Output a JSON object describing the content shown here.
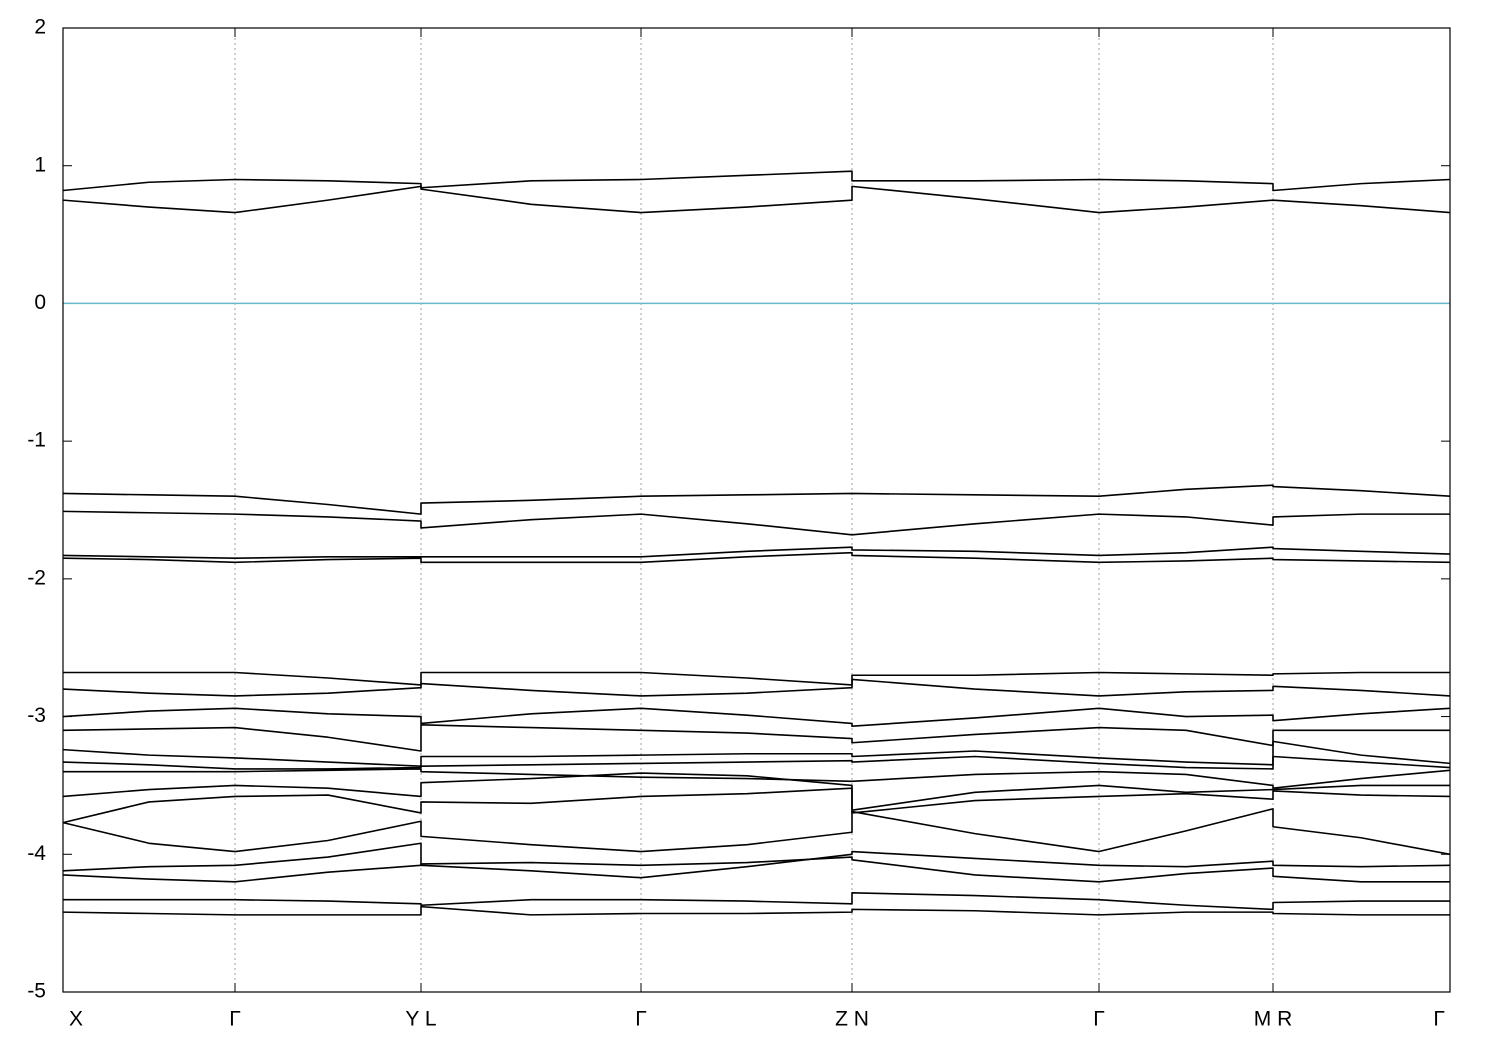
{
  "chart_data": {
    "type": "line",
    "x": [
      0,
      0.86,
      1.72,
      2.65,
      3.58,
      3.58,
      4.68,
      5.78,
      6.84,
      7.89,
      7.89,
      9.12,
      10.36,
      11.23,
      12.1,
      12.1,
      12.98,
      13.87
    ],
    "xlim": [
      0,
      13.87
    ],
    "xticks": [
      {
        "value": 0,
        "label": "X"
      },
      {
        "value": 1.72,
        "label": "Γ"
      },
      {
        "value": 3.58,
        "label": "Y L"
      },
      {
        "value": 5.78,
        "label": "Γ"
      },
      {
        "value": 7.89,
        "label": "Z N"
      },
      {
        "value": 10.36,
        "label": "Γ"
      },
      {
        "value": 12.1,
        "label": "M R"
      },
      {
        "value": 13.87,
        "label": "Γ"
      }
    ],
    "ylim": [
      -5,
      2
    ],
    "yticks": [
      -5,
      -4,
      -3,
      -2,
      -1,
      0,
      1,
      2
    ],
    "grid": true,
    "color": "#000000",
    "reference_line": {
      "value": 0,
      "color": "#6bb8cc"
    },
    "series": [
      {
        "values": [
          0.82,
          0.88,
          0.9,
          0.89,
          0.87,
          0.84,
          0.89,
          0.9,
          0.93,
          0.96,
          0.89,
          0.89,
          0.9,
          0.89,
          0.87,
          0.82,
          0.87,
          0.9
        ]
      },
      {
        "values": [
          0.75,
          0.7,
          0.66,
          0.75,
          0.85,
          0.83,
          0.72,
          0.66,
          0.7,
          0.75,
          0.85,
          0.76,
          0.66,
          0.7,
          0.75,
          0.75,
          0.71,
          0.66
        ]
      },
      {
        "values": [
          -1.38,
          -1.39,
          -1.4,
          -1.46,
          -1.53,
          -1.45,
          -1.43,
          -1.4,
          -1.39,
          -1.38,
          -1.38,
          -1.39,
          -1.4,
          -1.35,
          -1.32,
          -1.33,
          -1.36,
          -1.4
        ]
      },
      {
        "values": [
          -1.51,
          -1.52,
          -1.53,
          -1.55,
          -1.58,
          -1.63,
          -1.57,
          -1.53,
          -1.6,
          -1.68,
          -1.68,
          -1.6,
          -1.53,
          -1.55,
          -1.61,
          -1.55,
          -1.53,
          -1.53
        ]
      },
      {
        "values": [
          -1.83,
          -1.84,
          -1.85,
          -1.84,
          -1.84,
          -1.84,
          -1.84,
          -1.84,
          -1.8,
          -1.77,
          -1.79,
          -1.8,
          -1.83,
          -1.81,
          -1.77,
          -1.78,
          -1.8,
          -1.82
        ]
      },
      {
        "values": [
          -1.85,
          -1.86,
          -1.88,
          -1.86,
          -1.85,
          -1.88,
          -1.88,
          -1.88,
          -1.84,
          -1.81,
          -1.83,
          -1.85,
          -1.88,
          -1.87,
          -1.85,
          -1.86,
          -1.87,
          -1.88
        ]
      },
      {
        "values": [
          -2.68,
          -2.68,
          -2.68,
          -2.72,
          -2.77,
          -2.68,
          -2.68,
          -2.68,
          -2.72,
          -2.77,
          -2.7,
          -2.7,
          -2.68,
          -2.69,
          -2.7,
          -2.69,
          -2.68,
          -2.68
        ]
      },
      {
        "values": [
          -2.8,
          -2.83,
          -2.85,
          -2.83,
          -2.79,
          -2.76,
          -2.81,
          -2.85,
          -2.83,
          -2.79,
          -2.73,
          -2.8,
          -2.85,
          -2.82,
          -2.81,
          -2.78,
          -2.81,
          -2.85
        ]
      },
      {
        "values": [
          -3.0,
          -2.96,
          -2.94,
          -2.98,
          -3.0,
          -3.05,
          -2.98,
          -2.94,
          -2.99,
          -3.05,
          -3.07,
          -3.01,
          -2.94,
          -3.0,
          -2.99,
          -3.03,
          -2.98,
          -2.94
        ]
      },
      {
        "values": [
          -3.1,
          -3.09,
          -3.08,
          -3.15,
          -3.25,
          -3.06,
          -3.08,
          -3.1,
          -3.12,
          -3.16,
          -3.19,
          -3.13,
          -3.08,
          -3.1,
          -3.21,
          -3.1,
          -3.1,
          -3.1
        ]
      },
      {
        "values": [
          -3.24,
          -3.28,
          -3.3,
          -3.33,
          -3.36,
          -3.29,
          -3.29,
          -3.28,
          -3.27,
          -3.27,
          -3.29,
          -3.25,
          -3.3,
          -3.33,
          -3.35,
          -3.18,
          -3.28,
          -3.34
        ]
      },
      {
        "values": [
          -3.33,
          -3.35,
          -3.38,
          -3.38,
          -3.37,
          -3.36,
          -3.35,
          -3.34,
          -3.33,
          -3.32,
          -3.33,
          -3.29,
          -3.34,
          -3.37,
          -3.38,
          -3.29,
          -3.33,
          -3.37
        ]
      },
      {
        "values": [
          -3.4,
          -3.4,
          -3.4,
          -3.39,
          -3.38,
          -3.4,
          -3.42,
          -3.44,
          -3.45,
          -3.47,
          -3.47,
          -3.42,
          -3.4,
          -3.42,
          -3.5,
          -3.52,
          -3.45,
          -3.39
        ]
      },
      {
        "values": [
          -3.58,
          -3.53,
          -3.5,
          -3.52,
          -3.58,
          -3.48,
          -3.45,
          -3.41,
          -3.43,
          -3.5,
          -3.68,
          -3.55,
          -3.5,
          -3.55,
          -3.53,
          -3.53,
          -3.5,
          -3.5
        ]
      },
      {
        "values": [
          -3.77,
          -3.62,
          -3.58,
          -3.57,
          -3.7,
          -3.62,
          -3.63,
          -3.58,
          -3.56,
          -3.52,
          -3.7,
          -3.61,
          -3.58,
          -3.56,
          -3.6,
          -3.54,
          -3.57,
          -3.58
        ]
      },
      {
        "values": [
          -3.77,
          -3.92,
          -3.98,
          -3.9,
          -3.76,
          -3.87,
          -3.93,
          -3.98,
          -3.93,
          -3.84,
          -3.69,
          -3.85,
          -3.98,
          -3.83,
          -3.67,
          -3.8,
          -3.88,
          -4.0
        ]
      },
      {
        "values": [
          -4.12,
          -4.09,
          -4.08,
          -4.02,
          -3.92,
          -4.08,
          -4.12,
          -4.17,
          -4.09,
          -4.0,
          -3.98,
          -4.03,
          -4.08,
          -4.09,
          -4.05,
          -4.08,
          -4.09,
          -4.08
        ]
      },
      {
        "values": [
          -4.15,
          -4.18,
          -4.2,
          -4.13,
          -4.08,
          -4.07,
          -4.06,
          -4.08,
          -4.06,
          -4.02,
          -4.04,
          -4.15,
          -4.2,
          -4.14,
          -4.1,
          -4.16,
          -4.2,
          -4.2
        ]
      },
      {
        "values": [
          -4.33,
          -4.33,
          -4.33,
          -4.34,
          -4.36,
          -4.37,
          -4.33,
          -4.33,
          -4.34,
          -4.36,
          -4.28,
          -4.3,
          -4.33,
          -4.37,
          -4.4,
          -4.35,
          -4.34,
          -4.34
        ]
      },
      {
        "values": [
          -4.42,
          -4.43,
          -4.44,
          -4.44,
          -4.44,
          -4.38,
          -4.44,
          -4.43,
          -4.43,
          -4.42,
          -4.4,
          -4.41,
          -4.44,
          -4.42,
          -4.42,
          -4.43,
          -4.44,
          -4.44
        ]
      }
    ]
  }
}
